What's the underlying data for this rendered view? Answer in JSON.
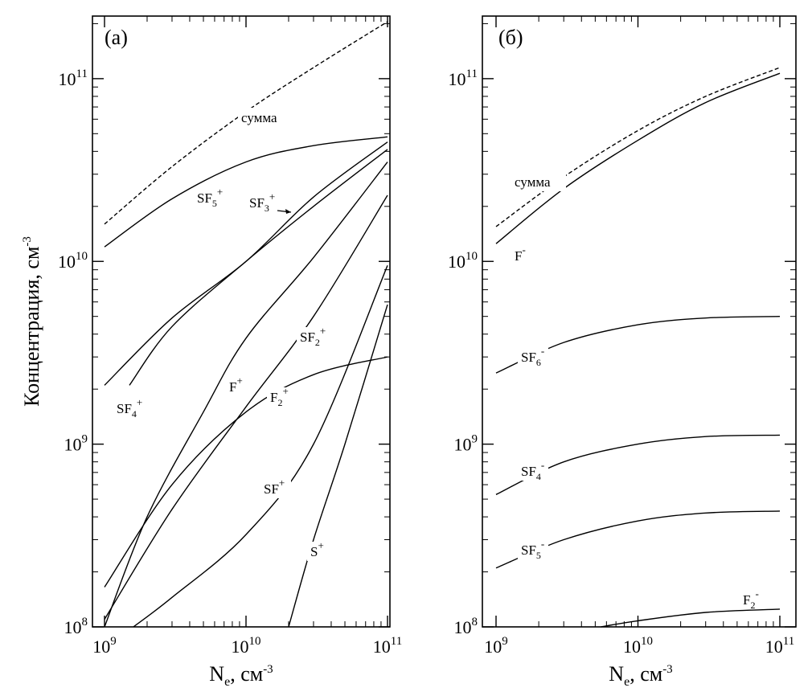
{
  "ylabel_text": "Концентрация, см",
  "ylabel_sup": "-3",
  "xlabel_text": "N",
  "xlabel_sub": "e",
  "xlabel_unit": ", см",
  "xlabel_sup": "-3",
  "chart_data": [
    {
      "type": "line",
      "panel": "(а)",
      "x_scale": "log",
      "y_scale": "log",
      "xlim": [
        1000000000.0,
        100000000000.0
      ],
      "ylim": [
        100000000.0,
        220000000000.0
      ],
      "x_ticks": [
        {
          "base": "10",
          "exp": "9",
          "value": 1000000000.0
        },
        {
          "base": "10",
          "exp": "10",
          "value": 10000000000.0
        },
        {
          "base": "10",
          "exp": "11",
          "value": 100000000000.0
        }
      ],
      "y_ticks": [
        {
          "base": "10",
          "exp": "8",
          "value": 100000000.0
        },
        {
          "base": "10",
          "exp": "9",
          "value": 1000000000.0
        },
        {
          "base": "10",
          "exp": "10",
          "value": 10000000000.0
        },
        {
          "base": "10",
          "exp": "11",
          "value": 100000000000.0
        }
      ],
      "series": [
        {
          "name": "сумма",
          "style": "dashed",
          "label_base": "сумма",
          "label_sup": "",
          "label_sub": "",
          "x": [
            1000000000.0,
            3000000000.0,
            10000000000.0,
            30000000000.0,
            100000000000.0
          ],
          "y": [
            16000000000.0,
            33000000000.0,
            66000000000.0,
            115000000000.0,
            205000000000.0
          ]
        },
        {
          "name": "SF5+",
          "style": "solid",
          "label_base": "SF",
          "label_sub": "5",
          "label_sup": "+",
          "x": [
            1000000000.0,
            3000000000.0,
            10000000000.0,
            30000000000.0,
            100000000000.0
          ],
          "y": [
            12000000000.0,
            22000000000.0,
            35000000000.0,
            43000000000.0,
            48000000000.0
          ]
        },
        {
          "name": "SF3+",
          "style": "solid",
          "label_base": "SF",
          "label_sub": "3",
          "label_sup": "+",
          "x": [
            1000000000.0,
            3000000000.0,
            10000000000.0,
            30000000000.0,
            100000000000.0
          ],
          "y": [
            2100000000.0,
            4900000000.0,
            10000000000.0,
            22500000000.0,
            45000000000.0
          ]
        },
        {
          "name": "SF4+",
          "style": "solid",
          "label_base": "SF",
          "label_sub": "4",
          "label_sup": "+",
          "x": [
            1500000000.0,
            3000000000.0,
            10000000000.0,
            30000000000.0,
            100000000000.0
          ],
          "y": [
            2100000000.0,
            4400000000.0,
            10000000000.0,
            20000000000.0,
            41000000000.0
          ]
        },
        {
          "name": "F+",
          "style": "solid",
          "label_base": "F",
          "label_sub": "",
          "label_sup": "+",
          "x": [
            1000000000.0,
            2000000000.0,
            5000000000.0,
            10000000000.0,
            30000000000.0,
            100000000000.0
          ],
          "y": [
            100000000.0,
            400000000.0,
            1500000000.0,
            3800000000.0,
            10500000000.0,
            35000000000.0
          ]
        },
        {
          "name": "SF2+",
          "style": "solid",
          "label_base": "SF",
          "label_sub": "2",
          "label_sup": "+",
          "x": [
            1000000000.0,
            3000000000.0,
            10000000000.0,
            30000000000.0,
            100000000000.0
          ],
          "y": [
            110000000.0,
            440000000.0,
            1600000000.0,
            5000000000.0,
            23000000000.0
          ]
        },
        {
          "name": "F2+",
          "style": "solid",
          "label_base": "F",
          "label_sub": "2",
          "label_sup": "+",
          "x": [
            1000000000.0,
            3000000000.0,
            10000000000.0,
            30000000000.0,
            100000000000.0
          ],
          "y": [
            165000000.0,
            600000000.0,
            1500000000.0,
            2400000000.0,
            3000000000.0
          ]
        },
        {
          "name": "SF+",
          "style": "solid",
          "label_base": "SF",
          "label_sub": "",
          "label_sup": "+",
          "x": [
            1600000000.0,
            3000000000.0,
            10000000000.0,
            30000000000.0,
            100000000000.0
          ],
          "y": [
            100000000.0,
            145000000.0,
            320000000.0,
            1000000000.0,
            9500000000.0
          ]
        },
        {
          "name": "S+",
          "style": "solid",
          "label_base": "S",
          "label_sub": "",
          "label_sup": "+",
          "x": [
            20000000000.0,
            30000000000.0,
            50000000000.0,
            100000000000.0
          ],
          "y": [
            100000000.0,
            300000000.0,
            1000000000.0,
            5800000000.0
          ]
        }
      ]
    },
    {
      "type": "line",
      "panel": "(б)",
      "x_scale": "log",
      "y_scale": "log",
      "xlim": [
        1000000000.0,
        100000000000.0
      ],
      "ylim": [
        100000000.0,
        220000000000.0
      ],
      "x_ticks": [
        {
          "base": "10",
          "exp": "9",
          "value": 1000000000.0
        },
        {
          "base": "10",
          "exp": "10",
          "value": 10000000000.0
        },
        {
          "base": "10",
          "exp": "11",
          "value": 100000000000.0
        }
      ],
      "y_ticks": [
        {
          "base": "10",
          "exp": "8",
          "value": 100000000.0
        },
        {
          "base": "10",
          "exp": "9",
          "value": 1000000000.0
        },
        {
          "base": "10",
          "exp": "10",
          "value": 10000000000.0
        },
        {
          "base": "10",
          "exp": "11",
          "value": 100000000000.0
        }
      ],
      "series": [
        {
          "name": "сумма",
          "style": "dashed",
          "label_base": "сумма",
          "label_sup": "",
          "label_sub": "",
          "x": [
            1000000000.0,
            3000000000.0,
            10000000000.0,
            30000000000.0,
            100000000000.0
          ],
          "y": [
            15500000000.0,
            29000000000.0,
            52000000000.0,
            80000000000.0,
            115000000000.0
          ]
        },
        {
          "name": "F-",
          "style": "solid",
          "label_base": "F",
          "label_sub": "",
          "label_sup": "-",
          "x": [
            1000000000.0,
            3000000000.0,
            10000000000.0,
            30000000000.0,
            100000000000.0
          ],
          "y": [
            12500000000.0,
            25000000000.0,
            46000000000.0,
            74000000000.0,
            107000000000.0
          ]
        },
        {
          "name": "SF6-",
          "style": "solid",
          "label_base": "SF",
          "label_sub": "6",
          "label_sup": "-",
          "x": [
            1000000000.0,
            3000000000.0,
            10000000000.0,
            30000000000.0,
            100000000000.0
          ],
          "y": [
            2450000000.0,
            3600000000.0,
            4500000000.0,
            4900000000.0,
            5000000000.0
          ]
        },
        {
          "name": "SF4-",
          "style": "solid",
          "label_base": "SF",
          "label_sub": "4",
          "label_sup": "-",
          "x": [
            1000000000.0,
            3000000000.0,
            10000000000.0,
            30000000000.0,
            100000000000.0
          ],
          "y": [
            530000000.0,
            800000000.0,
            1000000000.0,
            1100000000.0,
            1120000000.0
          ]
        },
        {
          "name": "SF5-",
          "style": "solid",
          "label_base": "SF",
          "label_sub": "5",
          "label_sup": "-",
          "x": [
            1000000000.0,
            3000000000.0,
            10000000000.0,
            30000000000.0,
            100000000000.0
          ],
          "y": [
            210000000.0,
            300000000.0,
            380000000.0,
            420000000.0,
            430000000.0
          ]
        },
        {
          "name": "F2-",
          "style": "solid",
          "label_base": "F",
          "label_sub": "2",
          "label_sup": "-",
          "x": [
            5500000000.0,
            10000000000.0,
            30000000000.0,
            100000000000.0
          ],
          "y": [
            100000000.0,
            108000000.0,
            120000000.0,
            125000000.0
          ]
        }
      ]
    }
  ]
}
